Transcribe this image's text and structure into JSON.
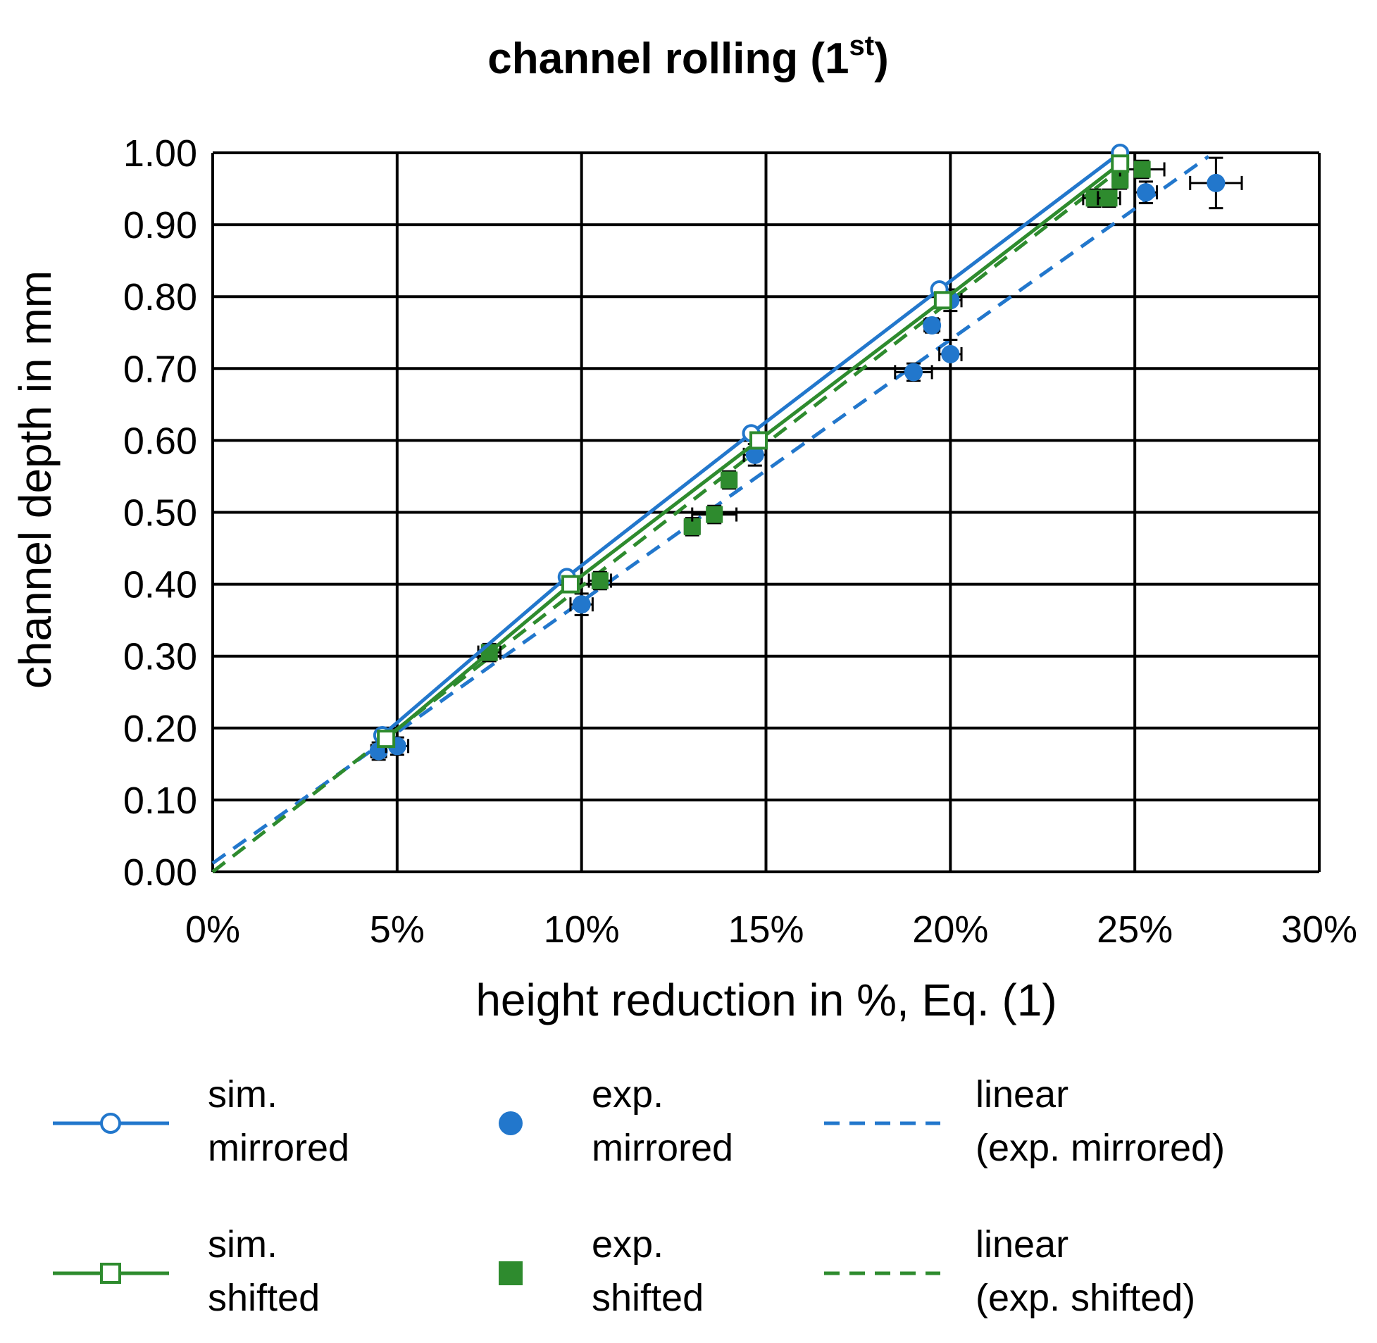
{
  "chart_data": {
    "type": "scatter",
    "title": "channel rolling (1",
    "title_superscript": "st",
    "title_suffix": ")",
    "xlabel": "height reduction in %, Eq. (1)",
    "ylabel": "channel depth in mm",
    "xlim": [
      0,
      30
    ],
    "ylim": [
      0,
      1.0
    ],
    "x_ticks": [
      "0%",
      "5%",
      "10%",
      "15%",
      "20%",
      "25%",
      "30%"
    ],
    "y_ticks": [
      "0.00",
      "0.10",
      "0.20",
      "0.30",
      "0.40",
      "0.50",
      "0.60",
      "0.70",
      "0.80",
      "0.90",
      "1.00"
    ],
    "grid": true,
    "legend_position": "bottom",
    "colors": {
      "blue": "#2277cc",
      "green": "#2e8b2e"
    },
    "series": [
      {
        "name_lines": [
          "sim.",
          "mirrored"
        ],
        "kind": "line-open-circle",
        "color": "blue",
        "x": [
          4.6,
          9.6,
          14.6,
          19.7,
          24.6
        ],
        "y": [
          0.19,
          0.41,
          0.61,
          0.81,
          1.0
        ]
      },
      {
        "name_lines": [
          "exp.",
          "mirrored"
        ],
        "kind": "filled-circle",
        "color": "blue",
        "x": [
          4.5,
          5.0,
          10.0,
          14.7,
          19.5,
          19.0,
          20.0,
          20.0,
          25.3,
          27.2
        ],
        "y": [
          0.168,
          0.175,
          0.372,
          0.58,
          0.76,
          0.695,
          0.795,
          0.72,
          0.945,
          0.958
        ],
        "xerr": [
          0.2,
          0.3,
          0.3,
          0.3,
          0.2,
          0.5,
          0.3,
          0.3,
          0.3,
          0.7
        ],
        "yerr": [
          0.012,
          0.012,
          0.015,
          0.015,
          0.01,
          0.012,
          0.015,
          0.02,
          0.015,
          0.035
        ]
      },
      {
        "name_lines": [
          "linear",
          "(exp. mirrored)"
        ],
        "kind": "dashed-line",
        "color": "blue",
        "x": [
          0,
          27
        ],
        "y": [
          0.012,
          0.995
        ]
      },
      {
        "name_lines": [
          "sim.",
          "shifted"
        ],
        "kind": "line-open-square",
        "color": "green",
        "x": [
          4.7,
          9.7,
          14.8,
          19.8,
          24.6
        ],
        "y": [
          0.185,
          0.4,
          0.6,
          0.795,
          0.985
        ]
      },
      {
        "name_lines": [
          "exp.",
          "shifted"
        ],
        "kind": "filled-square",
        "color": "green",
        "x": [
          7.5,
          10.5,
          13.0,
          13.6,
          14.0,
          23.9,
          24.3,
          24.6,
          25.2
        ],
        "y": [
          0.305,
          0.405,
          0.48,
          0.497,
          0.545,
          0.937,
          0.937,
          0.962,
          0.977
        ],
        "xerr": [
          0.3,
          0.3,
          0.2,
          0.6,
          0.2,
          0.3,
          0.3,
          0.2,
          0.6
        ],
        "yerr": [
          0.012,
          0.012,
          0.012,
          0.012,
          0.012,
          0.012,
          0.012,
          0.012,
          0.012
        ]
      },
      {
        "name_lines": [
          "linear",
          "(exp. shifted)"
        ],
        "kind": "dashed-line",
        "color": "green",
        "x": [
          0,
          24.8
        ],
        "y": [
          0.0,
          0.985
        ]
      }
    ]
  }
}
